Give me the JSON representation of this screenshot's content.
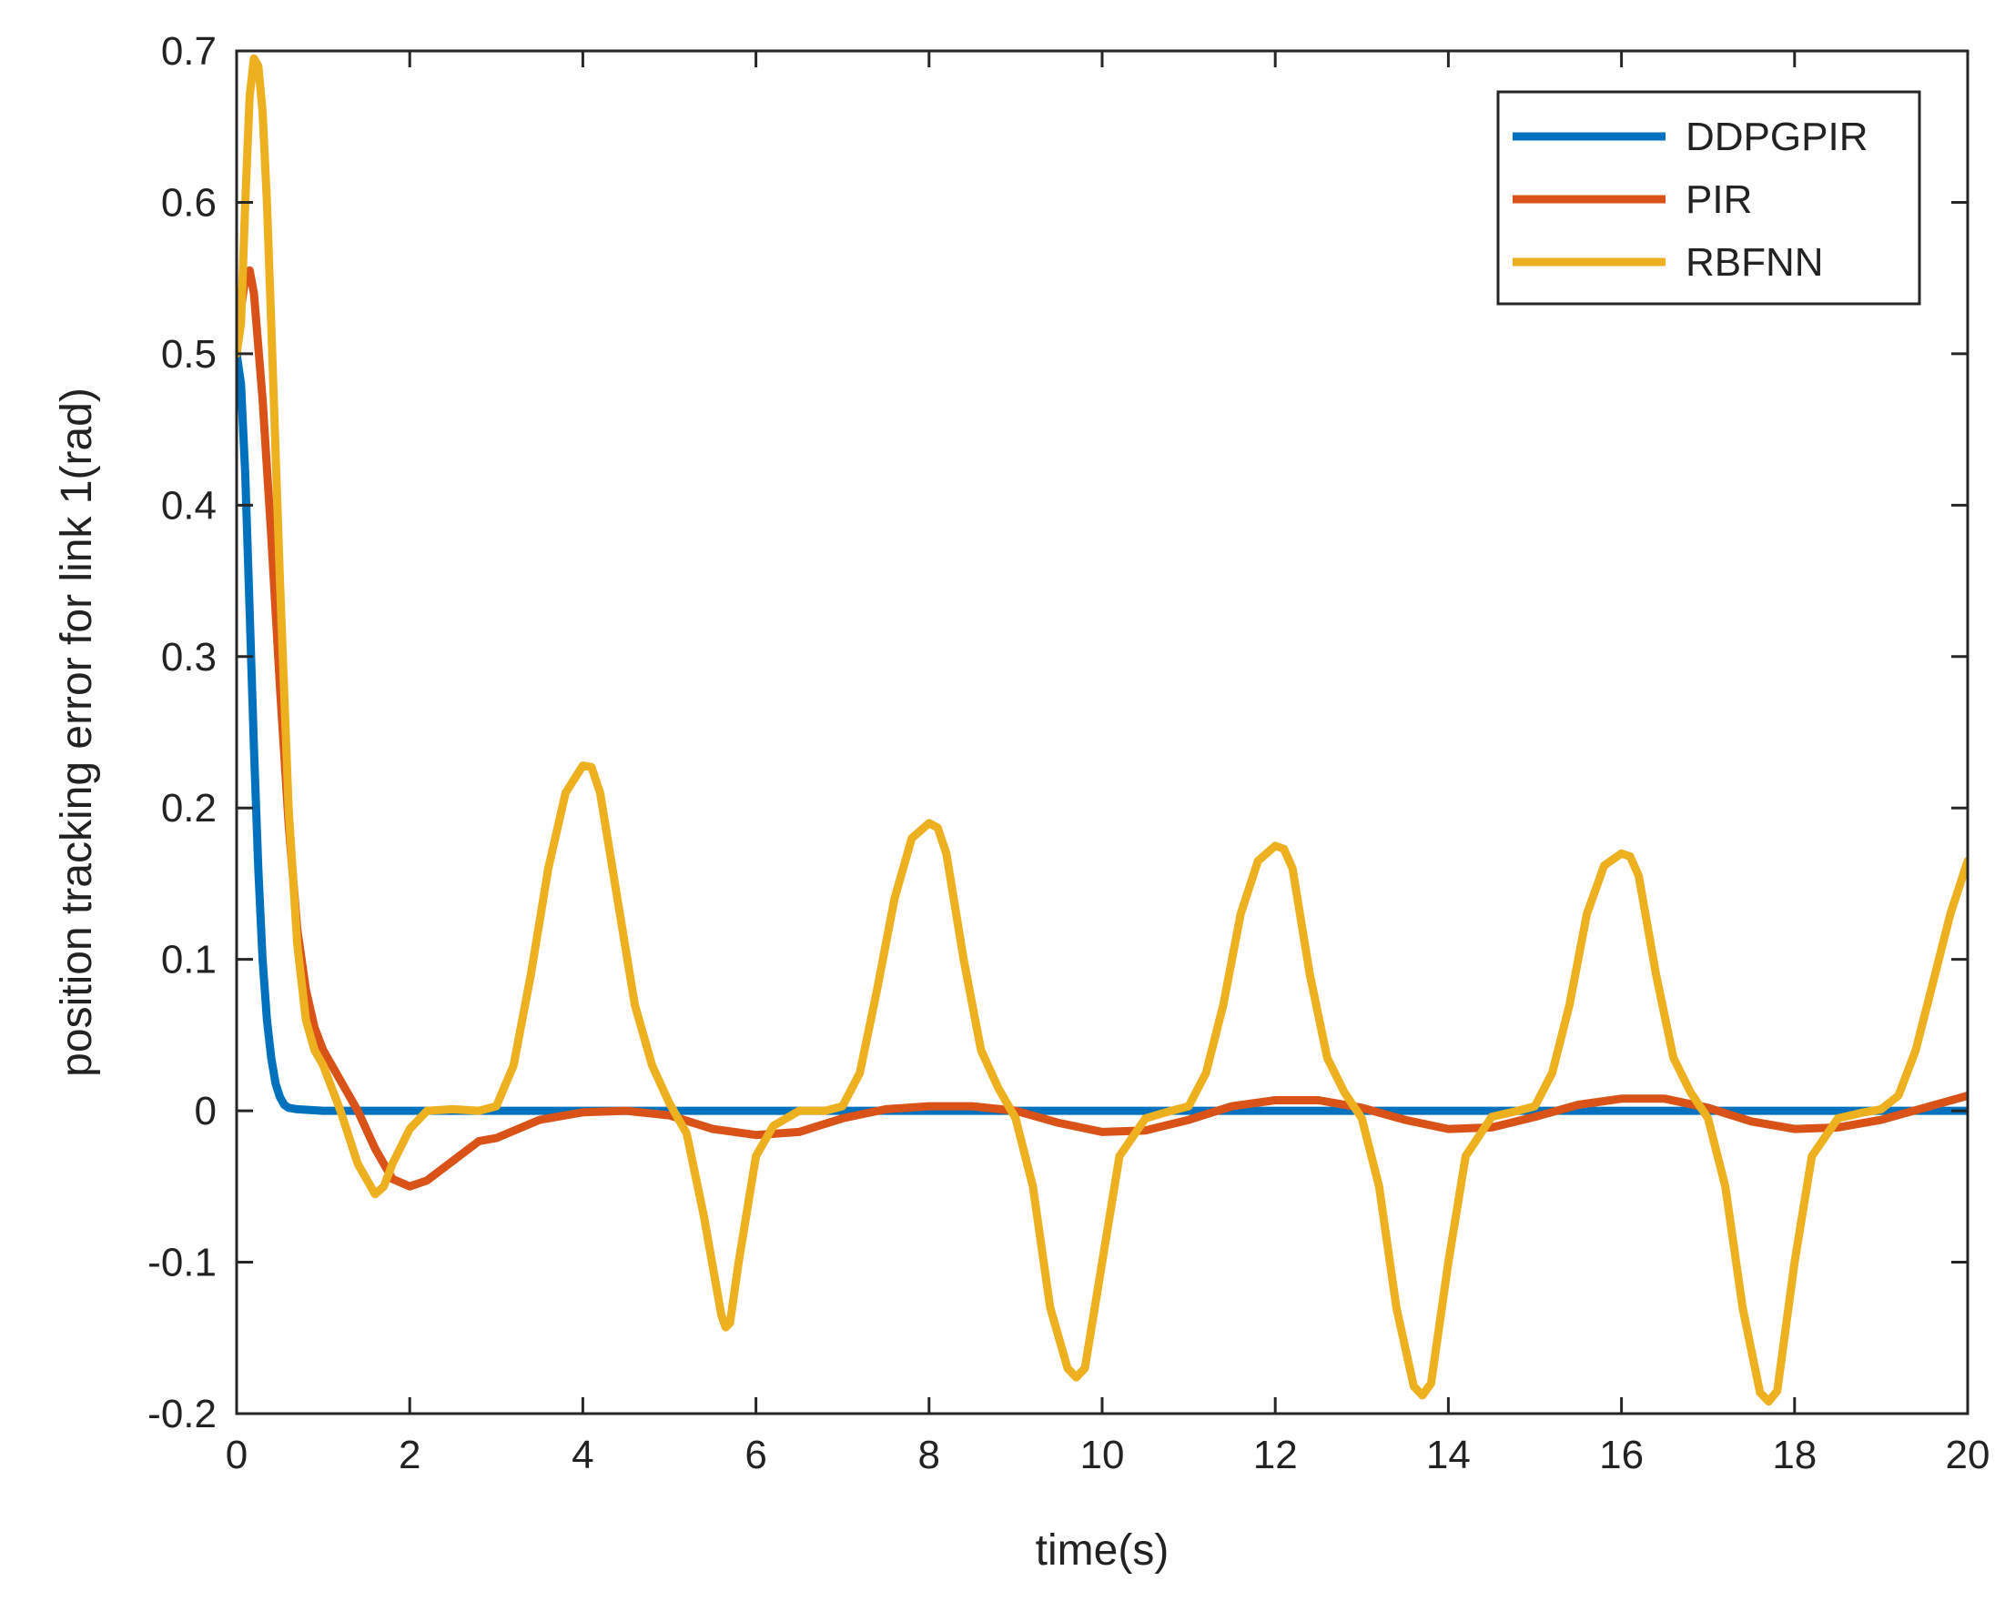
{
  "chart_data": {
    "type": "line",
    "title": "",
    "xlabel": "time(s)",
    "ylabel": "position tracking error for link 1(rad)",
    "xlim": [
      0,
      20
    ],
    "ylim": [
      -0.2,
      0.7
    ],
    "xticks": [
      0,
      2,
      4,
      6,
      8,
      10,
      12,
      14,
      16,
      18,
      20
    ],
    "yticks": [
      -0.2,
      -0.1,
      0,
      0.1,
      0.2,
      0.3,
      0.4,
      0.5,
      0.6,
      0.7
    ],
    "xtick_labels": [
      "0",
      "2",
      "4",
      "6",
      "8",
      "10",
      "12",
      "14",
      "16",
      "18",
      "20"
    ],
    "ytick_labels": [
      "-0.2",
      "-0.1",
      "0",
      "0.1",
      "0.2",
      "0.3",
      "0.4",
      "0.5",
      "0.6",
      "0.7"
    ],
    "grid": false,
    "legend_position": "top-right",
    "series": [
      {
        "name": "DDPGPIR",
        "color": "#0072BD",
        "x": [
          0,
          0.05,
          0.1,
          0.15,
          0.2,
          0.25,
          0.3,
          0.35,
          0.4,
          0.45,
          0.5,
          0.55,
          0.6,
          0.7,
          1,
          2,
          4,
          6,
          8,
          10,
          12,
          14,
          16,
          18,
          20
        ],
        "y": [
          0.5,
          0.48,
          0.42,
          0.33,
          0.24,
          0.16,
          0.1,
          0.06,
          0.035,
          0.018,
          0.009,
          0.004,
          0.002,
          0.001,
          0.0,
          0.0,
          0.0,
          0.0,
          0.0,
          0.0,
          0.0,
          0.0,
          0.0,
          0.0,
          0.0
        ]
      },
      {
        "name": "PIR",
        "color": "#D95319",
        "x": [
          0,
          0.05,
          0.1,
          0.15,
          0.2,
          0.3,
          0.4,
          0.5,
          0.6,
          0.7,
          0.8,
          0.9,
          1.0,
          1.2,
          1.4,
          1.6,
          1.8,
          2.0,
          2.2,
          2.5,
          2.8,
          3.0,
          3.5,
          4.0,
          4.5,
          5.0,
          5.5,
          6.0,
          6.5,
          7.0,
          7.5,
          8.0,
          8.5,
          9.0,
          9.5,
          10.0,
          10.5,
          11.0,
          11.5,
          12.0,
          12.5,
          13.0,
          13.5,
          14.0,
          14.5,
          15.0,
          15.5,
          16.0,
          16.5,
          17.0,
          17.5,
          18.0,
          18.5,
          19.0,
          19.5,
          20.0
        ],
        "y": [
          0.5,
          0.53,
          0.55,
          0.555,
          0.54,
          0.47,
          0.38,
          0.28,
          0.19,
          0.12,
          0.08,
          0.055,
          0.04,
          0.02,
          0.0,
          -0.025,
          -0.045,
          -0.05,
          -0.046,
          -0.033,
          -0.02,
          -0.018,
          -0.006,
          -0.001,
          0.0,
          -0.003,
          -0.012,
          -0.016,
          -0.014,
          -0.005,
          0.001,
          0.003,
          0.003,
          0.0,
          -0.008,
          -0.014,
          -0.013,
          -0.006,
          0.003,
          0.007,
          0.007,
          0.002,
          -0.006,
          -0.012,
          -0.011,
          -0.004,
          0.004,
          0.008,
          0.008,
          0.002,
          -0.007,
          -0.012,
          -0.011,
          -0.006,
          0.002,
          0.01
        ]
      },
      {
        "name": "RBFNN",
        "color": "#EDB120",
        "x": [
          0,
          0.05,
          0.1,
          0.15,
          0.2,
          0.25,
          0.3,
          0.35,
          0.4,
          0.5,
          0.6,
          0.7,
          0.8,
          0.9,
          1.0,
          1.2,
          1.4,
          1.6,
          1.7,
          1.8,
          2.0,
          2.2,
          2.5,
          2.8,
          3.0,
          3.2,
          3.4,
          3.6,
          3.8,
          4.0,
          4.1,
          4.2,
          4.4,
          4.6,
          4.8,
          5.0,
          5.2,
          5.4,
          5.6,
          5.65,
          5.7,
          5.8,
          6.0,
          6.2,
          6.5,
          6.8,
          7.0,
          7.2,
          7.4,
          7.6,
          7.8,
          8.0,
          8.1,
          8.2,
          8.4,
          8.6,
          8.8,
          9.0,
          9.2,
          9.4,
          9.6,
          9.7,
          9.8,
          10.0,
          10.2,
          10.5,
          10.8,
          11.0,
          11.2,
          11.4,
          11.6,
          11.8,
          12.0,
          12.1,
          12.2,
          12.4,
          12.6,
          12.8,
          13.0,
          13.2,
          13.4,
          13.6,
          13.7,
          13.8,
          14.0,
          14.2,
          14.5,
          14.8,
          15.0,
          15.2,
          15.4,
          15.6,
          15.8,
          16.0,
          16.1,
          16.2,
          16.4,
          16.6,
          16.8,
          17.0,
          17.2,
          17.4,
          17.6,
          17.7,
          17.8,
          18.0,
          18.2,
          18.5,
          18.8,
          19.0,
          19.2,
          19.4,
          19.6,
          19.8,
          20.0
        ],
        "y": [
          0.5,
          0.52,
          0.6,
          0.67,
          0.695,
          0.69,
          0.66,
          0.6,
          0.52,
          0.35,
          0.2,
          0.11,
          0.06,
          0.04,
          0.03,
          0.0,
          -0.035,
          -0.055,
          -0.05,
          -0.035,
          -0.012,
          0.0,
          0.001,
          0.0,
          0.003,
          0.03,
          0.09,
          0.16,
          0.21,
          0.228,
          0.227,
          0.21,
          0.14,
          0.07,
          0.03,
          0.005,
          -0.015,
          -0.07,
          -0.135,
          -0.143,
          -0.14,
          -0.1,
          -0.03,
          -0.01,
          0.0,
          0.0,
          0.003,
          0.025,
          0.08,
          0.14,
          0.18,
          0.19,
          0.187,
          0.17,
          0.1,
          0.04,
          0.015,
          -0.005,
          -0.05,
          -0.13,
          -0.17,
          -0.176,
          -0.17,
          -0.1,
          -0.03,
          -0.005,
          0.0,
          0.003,
          0.025,
          0.07,
          0.13,
          0.165,
          0.175,
          0.173,
          0.16,
          0.09,
          0.035,
          0.012,
          -0.005,
          -0.05,
          -0.13,
          -0.182,
          -0.188,
          -0.18,
          -0.1,
          -0.03,
          -0.004,
          0.0,
          0.003,
          0.025,
          0.07,
          0.13,
          0.162,
          0.17,
          0.168,
          0.155,
          0.09,
          0.035,
          0.012,
          -0.005,
          -0.05,
          -0.13,
          -0.186,
          -0.192,
          -0.185,
          -0.1,
          -0.03,
          -0.005,
          -0.001,
          0.001,
          0.01,
          0.04,
          0.085,
          0.13,
          0.165
        ]
      }
    ]
  }
}
